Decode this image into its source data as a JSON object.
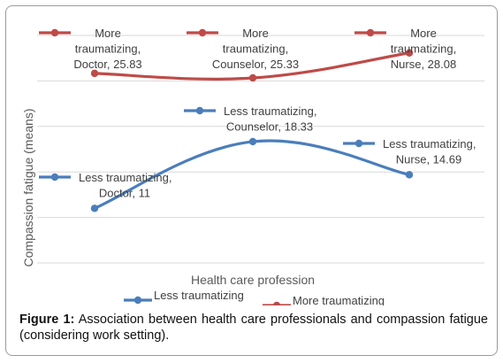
{
  "chart_data": {
    "type": "line",
    "x": [
      "Doctor",
      "Counselor",
      "Nurse"
    ],
    "xlabel": "Health care profession",
    "ylabel": "Compassion fatigue (means)",
    "ylim": [
      5,
      30
    ],
    "grid": true,
    "legend_position": "bottom",
    "series": [
      {
        "name": "Less traumatizing",
        "color": "#4a7ebb",
        "values": [
          11,
          18.33,
          14.69
        ],
        "labels": [
          [
            "Less traumatizing,",
            "Doctor, 11"
          ],
          [
            "Less traumatizing,",
            "Counselor, 18.33"
          ],
          [
            "Less traumatizing,",
            "Nurse, 14.69"
          ]
        ]
      },
      {
        "name": "More traumatizing",
        "color": "#be4b48",
        "values": [
          25.83,
          25.33,
          28.08
        ],
        "labels": [
          [
            "More",
            "traumatizing,",
            "Doctor, 25.83"
          ],
          [
            "More",
            "traumatizing,",
            "Counselor, 25.33"
          ],
          [
            "More",
            "traumatizing,",
            "Nurse, 28.08"
          ]
        ]
      }
    ]
  },
  "caption": {
    "label": "Figure 1:",
    "text": "Association between health care professionals and compassion fatigue (considering work setting)."
  }
}
